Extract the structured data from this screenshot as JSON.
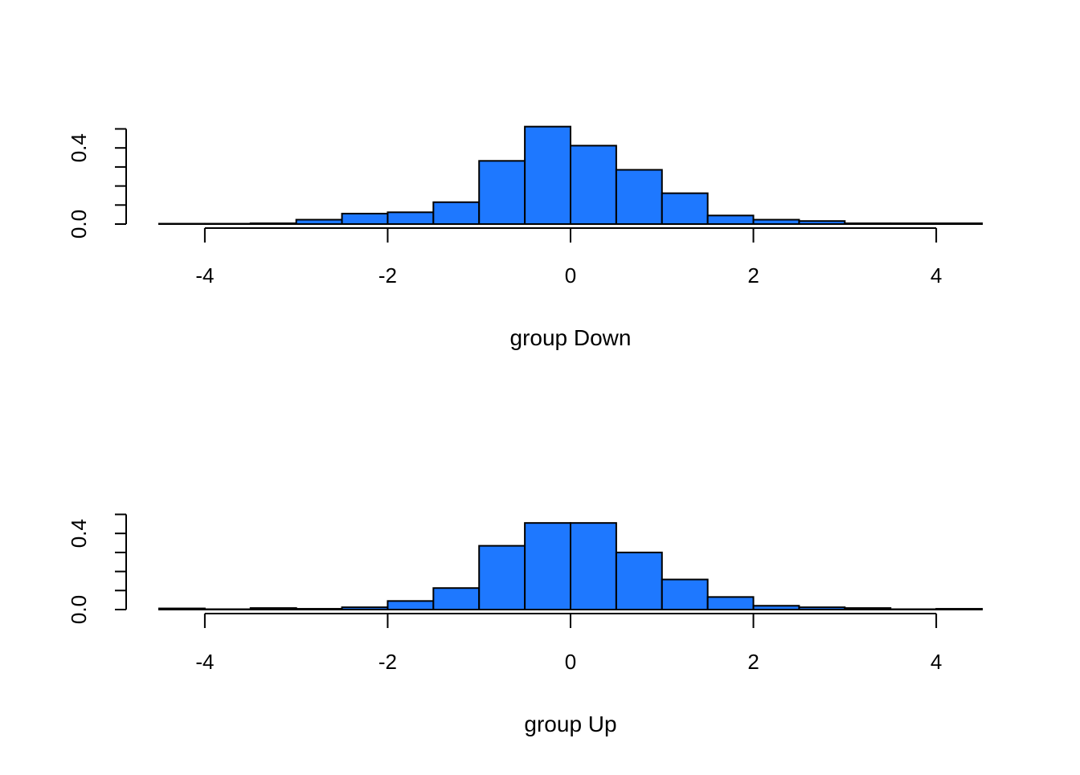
{
  "colors": {
    "bar_fill": "#1e78ff",
    "bar_stroke": "#000000",
    "axis": "#000000",
    "background": "#ffffff"
  },
  "chart_data": [
    {
      "type": "bar",
      "subtype": "histogram",
      "xlabel": "group Down",
      "ylabel": "",
      "xlim": [
        -4.5,
        4.5
      ],
      "ylim": [
        0,
        0.52
      ],
      "x_ticks": [
        -4,
        -2,
        0,
        2,
        4
      ],
      "y_ticks": [
        0,
        0.1,
        0.2,
        0.3,
        0.4,
        0.5
      ],
      "y_tick_labels": [
        "0.0",
        "0.4"
      ],
      "grid": false,
      "bin_edges": [
        -4.5,
        -4.0,
        -3.5,
        -3.0,
        -2.5,
        -2.0,
        -1.5,
        -1.0,
        -0.5,
        0.0,
        0.5,
        1.0,
        1.5,
        2.0,
        2.5,
        3.0,
        3.5,
        4.0,
        4.5
      ],
      "values": [
        0.002,
        0.002,
        0.004,
        0.023,
        0.055,
        0.062,
        0.115,
        0.332,
        0.512,
        0.412,
        0.285,
        0.162,
        0.045,
        0.023,
        0.016,
        0.004,
        0.004,
        0.004
      ]
    },
    {
      "type": "bar",
      "subtype": "histogram",
      "xlabel": "group Up",
      "ylabel": "",
      "xlim": [
        -4.5,
        4.5
      ],
      "ylim": [
        0,
        0.52
      ],
      "x_ticks": [
        -4,
        -2,
        0,
        2,
        4
      ],
      "y_ticks": [
        0,
        0.1,
        0.2,
        0.3,
        0.4,
        0.5
      ],
      "y_tick_labels": [
        "0.0",
        "0.4"
      ],
      "grid": false,
      "bin_edges": [
        -4.5,
        -4.0,
        -3.5,
        -3.0,
        -2.5,
        -2.0,
        -1.5,
        -1.0,
        -0.5,
        0.0,
        0.5,
        1.0,
        1.5,
        2.0,
        2.5,
        3.0,
        3.5,
        4.0,
        4.5
      ],
      "values": [
        0.006,
        0.002,
        0.008,
        0.004,
        0.012,
        0.045,
        0.113,
        0.335,
        0.455,
        0.455,
        0.3,
        0.158,
        0.066,
        0.02,
        0.012,
        0.008,
        0.002,
        0.004
      ]
    }
  ]
}
